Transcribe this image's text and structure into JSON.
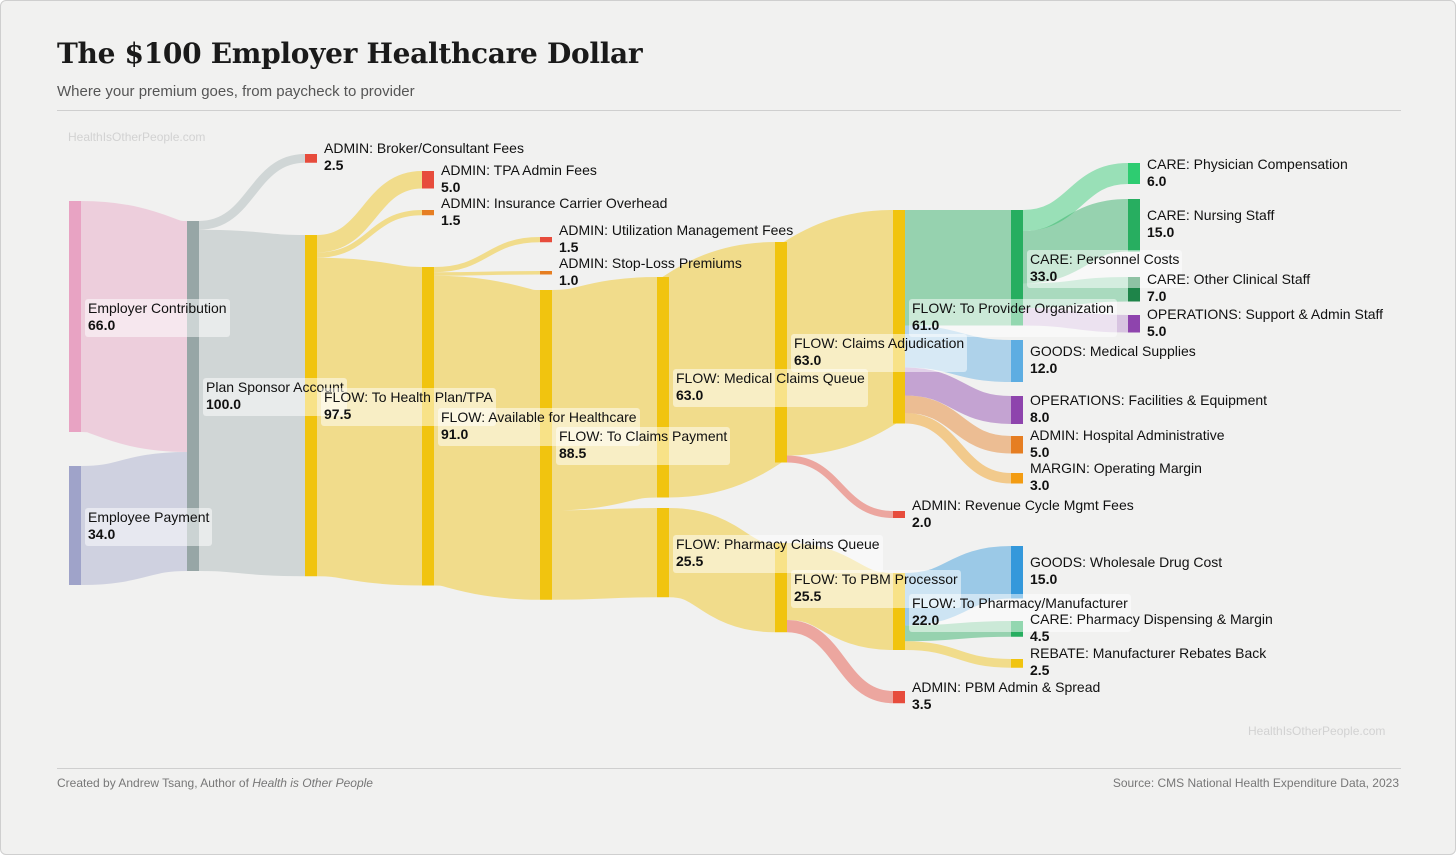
{
  "header": {
    "title": "The $100 Employer Healthcare Dollar",
    "subtitle": "Where your premium goes, from paycheck to provider"
  },
  "watermark": "HealthIsOtherPeople.com",
  "footer": {
    "credit_prefix": "Created by Andrew Tsang, Author of ",
    "credit_book": "Health is Other People",
    "source": "Source: CMS National Health Expenditure Data, 2023"
  },
  "chart_data": {
    "type": "sankey",
    "title": "The $100 Employer Healthcare Dollar",
    "units": "dollars of $100",
    "nodes": [
      {
        "id": "emp",
        "label": "Employer Contribution",
        "value": "66.0",
        "color": "#e8a3c3",
        "stage": 0
      },
      {
        "id": "ee",
        "label": "Employee Payment",
        "value": "34.0",
        "color": "#9fa3c9",
        "stage": 0
      },
      {
        "id": "psa",
        "label": "Plan Sponsor Account",
        "value": "100.0",
        "color": "#97a6a6",
        "stage": 1
      },
      {
        "id": "broker",
        "label": "ADMIN: Broker/Consultant Fees",
        "value": "2.5",
        "color": "#e74c3c",
        "stage": 2
      },
      {
        "id": "hp",
        "label": "FLOW: To Health Plan/TPA",
        "value": "97.5",
        "color": "#f1c40f",
        "stage": 2
      },
      {
        "id": "tpa",
        "label": "ADMIN: TPA Admin Fees",
        "value": "5.0",
        "color": "#e74c3c",
        "stage": 3
      },
      {
        "id": "ins",
        "label": "ADMIN: Insurance Carrier Overhead",
        "value": "1.5",
        "color": "#e67e22",
        "stage": 3
      },
      {
        "id": "avail",
        "label": "FLOW: Available for Healthcare",
        "value": "91.0",
        "color": "#f1c40f",
        "stage": 3
      },
      {
        "id": "um",
        "label": "ADMIN: Utilization Management Fees",
        "value": "1.5",
        "color": "#e74c3c",
        "stage": 4
      },
      {
        "id": "sl",
        "label": "ADMIN: Stop-Loss Premiums",
        "value": "1.0",
        "color": "#e67e22",
        "stage": 4
      },
      {
        "id": "cp",
        "label": "FLOW: To Claims Payment",
        "value": "88.5",
        "color": "#f1c40f",
        "stage": 4
      },
      {
        "id": "mcq",
        "label": "FLOW: Medical Claims Queue",
        "value": "63.0",
        "color": "#f1c40f",
        "stage": 5
      },
      {
        "id": "pcq",
        "label": "FLOW: Pharmacy Claims Queue",
        "value": "25.5",
        "color": "#f1c40f",
        "stage": 5
      },
      {
        "id": "ca",
        "label": "FLOW: Claims Adjudication",
        "value": "63.0",
        "color": "#f1c40f",
        "stage": 6
      },
      {
        "id": "pbm",
        "label": "FLOW: To PBM Processor",
        "value": "25.5",
        "color": "#f1c40f",
        "stage": 6
      },
      {
        "id": "prov",
        "label": "FLOW: To Provider Organization",
        "value": "61.0",
        "color": "#f1c40f",
        "stage": 7
      },
      {
        "id": "rcm",
        "label": "ADMIN: Revenue Cycle Mgmt Fees",
        "value": "2.0",
        "color": "#e74c3c",
        "stage": 7
      },
      {
        "id": "pharm",
        "label": "FLOW: To Pharmacy/Manufacturer",
        "value": "22.0",
        "color": "#f1c40f",
        "stage": 7
      },
      {
        "id": "pbmadmin",
        "label": "ADMIN: PBM Admin & Spread",
        "value": "3.5",
        "color": "#e74c3c",
        "stage": 7
      },
      {
        "id": "pers",
        "label": "CARE: Personnel Costs",
        "value": "33.0",
        "color": "#27ae60",
        "stage": 8
      },
      {
        "id": "supplies",
        "label": "GOODS: Medical Supplies",
        "value": "12.0",
        "color": "#5dade2",
        "stage": 8
      },
      {
        "id": "fac",
        "label": "OPERATIONS: Facilities & Equipment",
        "value": "8.0",
        "color": "#8e44ad",
        "stage": 8
      },
      {
        "id": "hadmin",
        "label": "ADMIN: Hospital Administrative",
        "value": "5.0",
        "color": "#e67e22",
        "stage": 8
      },
      {
        "id": "margin",
        "label": "MARGIN: Operating Margin",
        "value": "3.0",
        "color": "#f39c12",
        "stage": 8
      },
      {
        "id": "wdc",
        "label": "GOODS: Wholesale Drug Cost",
        "value": "15.0",
        "color": "#3498db",
        "stage": 8
      },
      {
        "id": "pdm",
        "label": "CARE: Pharmacy Dispensing & Margin",
        "value": "4.5",
        "color": "#27ae60",
        "stage": 8
      },
      {
        "id": "rebate",
        "label": "REBATE: Manufacturer Rebates Back",
        "value": "2.5",
        "color": "#f1c40f",
        "stage": 8
      },
      {
        "id": "phys",
        "label": "CARE: Physician Compensation",
        "value": "6.0",
        "color": "#2ecc71",
        "stage": 9
      },
      {
        "id": "nurs",
        "label": "CARE: Nursing Staff",
        "value": "15.0",
        "color": "#27ae60",
        "stage": 9
      },
      {
        "id": "other",
        "label": "CARE: Other Clinical Staff",
        "value": "7.0",
        "color": "#1e8449",
        "stage": 9
      },
      {
        "id": "support",
        "label": "OPERATIONS: Support & Admin Staff",
        "value": "5.0",
        "color": "#8e44ad",
        "stage": 9
      }
    ],
    "links": [
      {
        "source": "emp",
        "target": "psa",
        "value": 66,
        "color": "#e8a3c3"
      },
      {
        "source": "ee",
        "target": "psa",
        "value": 34,
        "color": "#a7aacd"
      },
      {
        "source": "psa",
        "target": "broker",
        "value": 2.5,
        "color": "#a9b6b6"
      },
      {
        "source": "psa",
        "target": "hp",
        "value": 97.5,
        "color": "#a9b6b6"
      },
      {
        "source": "hp",
        "target": "tpa",
        "value": 5,
        "color": "#f1c40f"
      },
      {
        "source": "hp",
        "target": "ins",
        "value": 1.5,
        "color": "#f1c40f"
      },
      {
        "source": "hp",
        "target": "avail",
        "value": 91,
        "color": "#f1c40f"
      },
      {
        "source": "avail",
        "target": "um",
        "value": 1.5,
        "color": "#f1c40f"
      },
      {
        "source": "avail",
        "target": "sl",
        "value": 1,
        "color": "#f1c40f"
      },
      {
        "source": "avail",
        "target": "cp",
        "value": 88.5,
        "color": "#f1c40f"
      },
      {
        "source": "cp",
        "target": "mcq",
        "value": 63,
        "color": "#f1c40f"
      },
      {
        "source": "cp",
        "target": "pcq",
        "value": 25.5,
        "color": "#f1c40f"
      },
      {
        "source": "mcq",
        "target": "ca",
        "value": 63,
        "color": "#f1c40f"
      },
      {
        "source": "ca",
        "target": "prov",
        "value": 61,
        "color": "#f1c40f"
      },
      {
        "source": "ca",
        "target": "rcm",
        "value": 2,
        "color": "#e74c3c"
      },
      {
        "source": "pcq",
        "target": "pbm",
        "value": 25.5,
        "color": "#f1c40f"
      },
      {
        "source": "pbm",
        "target": "pharm",
        "value": 22,
        "color": "#f1c40f"
      },
      {
        "source": "pbm",
        "target": "pbmadmin",
        "value": 3.5,
        "color": "#e74c3c"
      },
      {
        "source": "prov",
        "target": "pers",
        "value": 33,
        "color": "#27ae60"
      },
      {
        "source": "prov",
        "target": "supplies",
        "value": 12,
        "color": "#5dade2"
      },
      {
        "source": "prov",
        "target": "fac",
        "value": 8,
        "color": "#8e44ad"
      },
      {
        "source": "prov",
        "target": "hadmin",
        "value": 5,
        "color": "#e67e22"
      },
      {
        "source": "prov",
        "target": "margin",
        "value": 3,
        "color": "#f39c12"
      },
      {
        "source": "pers",
        "target": "phys",
        "value": 6,
        "color": "#2ecc71"
      },
      {
        "source": "pers",
        "target": "nurs",
        "value": 15,
        "color": "#27ae60"
      },
      {
        "source": "pers",
        "target": "other",
        "value": 7,
        "color": "#52be80"
      },
      {
        "source": "pers",
        "target": "support",
        "value": 5,
        "color": "#bb8fce"
      },
      {
        "source": "pharm",
        "target": "wdc",
        "value": 15,
        "color": "#3498db"
      },
      {
        "source": "pharm",
        "target": "pdm",
        "value": 4.5,
        "color": "#27ae60"
      },
      {
        "source": "pharm",
        "target": "rebate",
        "value": 2.5,
        "color": "#f1c40f"
      }
    ]
  }
}
